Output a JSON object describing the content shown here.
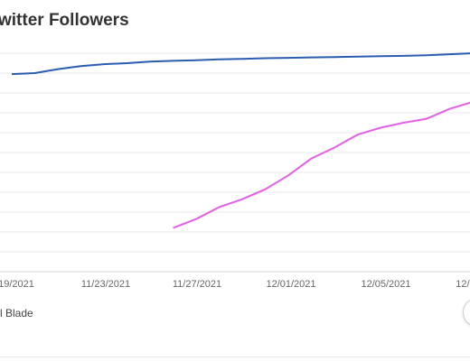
{
  "title": "witter Followers",
  "legend": {
    "partial_label": "l Blade"
  },
  "colors": {
    "series_blue": "#2a5db0",
    "series_magenta": "#e55fe8",
    "grid": "#e8e8e8",
    "tick_text": "#666666",
    "title_text": "#333333"
  },
  "icons": {
    "round_button": "circle-button-icon"
  },
  "chart_data": {
    "type": "line",
    "title": "",
    "xlabel": "",
    "ylabel": "",
    "x_ticks": [
      "19/2021",
      "11/23/2021",
      "11/27/2021",
      "12/01/2021",
      "12/05/2021",
      "12/0"
    ],
    "ylim": [
      0,
      12
    ],
    "grid": true,
    "series": [
      {
        "color": "#2a5db0",
        "x": [
          "11/19/2021",
          "11/20/2021",
          "11/21/2021",
          "11/22/2021",
          "11/23/2021",
          "11/24/2021",
          "11/25/2021",
          "11/26/2021",
          "11/27/2021",
          "11/28/2021",
          "11/29/2021",
          "11/30/2021",
          "12/01/2021",
          "12/02/2021",
          "12/03/2021",
          "12/04/2021",
          "12/05/2021",
          "12/06/2021",
          "12/07/2021",
          "12/08/2021",
          "12/09/2021"
        ],
        "values": [
          9.95,
          10.0,
          10.2,
          10.35,
          10.45,
          10.5,
          10.58,
          10.62,
          10.65,
          10.69,
          10.72,
          10.75,
          10.77,
          10.79,
          10.81,
          10.83,
          10.85,
          10.87,
          10.9,
          10.95,
          11.0
        ]
      },
      {
        "color": "#e55fe8",
        "x": [
          "11/26/2021",
          "11/27/2021",
          "11/28/2021",
          "11/29/2021",
          "11/30/2021",
          "12/01/2021",
          "12/02/2021",
          "12/03/2021",
          "12/04/2021",
          "12/05/2021",
          "12/06/2021",
          "12/07/2021",
          "12/08/2021",
          "12/09/2021"
        ],
        "values": [
          2.2,
          2.65,
          3.25,
          3.65,
          4.15,
          4.85,
          5.7,
          6.25,
          6.9,
          7.25,
          7.5,
          7.7,
          8.2,
          8.55
        ]
      }
    ]
  }
}
